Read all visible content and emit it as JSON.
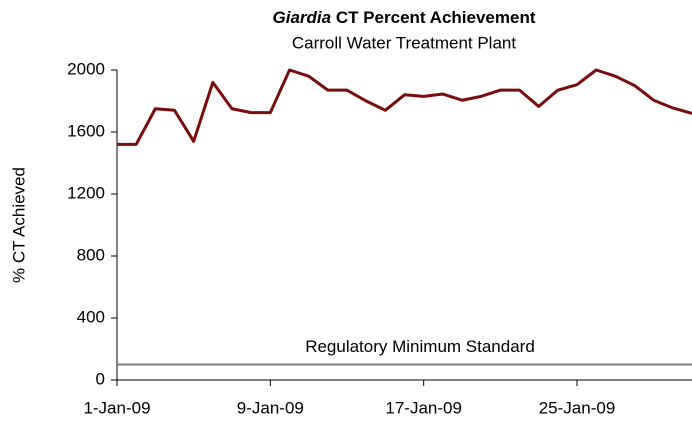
{
  "chart_data": {
    "type": "line",
    "title": {
      "italic": "Giardia",
      "rest": "CT Percent Achievement"
    },
    "subtitle": "Carroll Water Treatment Plant",
    "y_label": "% CT Achieved",
    "x": [
      "2009-01-01",
      "2009-01-02",
      "2009-01-03",
      "2009-01-04",
      "2009-01-05",
      "2009-01-06",
      "2009-01-07",
      "2009-01-08",
      "2009-01-09",
      "2009-01-10",
      "2009-01-11",
      "2009-01-12",
      "2009-01-13",
      "2009-01-14",
      "2009-01-15",
      "2009-01-16",
      "2009-01-17",
      "2009-01-18",
      "2009-01-19",
      "2009-01-20",
      "2009-01-21",
      "2009-01-22",
      "2009-01-23",
      "2009-01-24",
      "2009-01-25",
      "2009-01-26",
      "2009-01-27",
      "2009-01-28",
      "2009-01-29",
      "2009-01-30",
      "2009-01-31"
    ],
    "series": [
      {
        "name": "CT Percent Achievement",
        "color": "#7a0c0c",
        "values": [
          1520,
          1520,
          1750,
          1740,
          1540,
          1920,
          1750,
          1725,
          1725,
          2000,
          1960,
          1870,
          1870,
          1800,
          1740,
          1840,
          1830,
          1845,
          1805,
          1830,
          1870,
          1870,
          1765,
          1870,
          1905,
          2000,
          1960,
          1900,
          1805,
          1755,
          1720
        ]
      }
    ],
    "reference_line": {
      "label": "Regulatory Minimum Standard",
      "value": 100,
      "color": "#808080"
    },
    "xlim": [
      "2009-01-01",
      "2009-01-31"
    ],
    "xticks": [
      {
        "value": "2009-01-01",
        "label": "1-Jan-09"
      },
      {
        "value": "2009-01-09",
        "label": "9-Jan-09"
      },
      {
        "value": "2009-01-17",
        "label": "17-Jan-09"
      },
      {
        "value": "2009-01-25",
        "label": "25-Jan-09"
      }
    ],
    "ylim": [
      0,
      2000
    ],
    "yticks": [
      0,
      400,
      800,
      1200,
      1600,
      2000
    ],
    "grid": false
  }
}
